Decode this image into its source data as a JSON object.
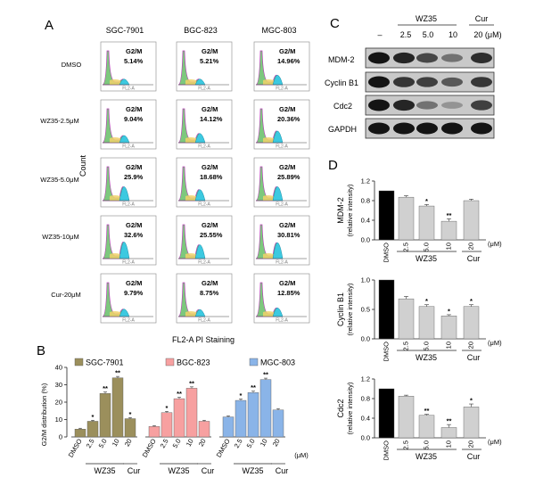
{
  "panels": {
    "A": {
      "letter": "A",
      "cell_lines": [
        "SGC-7901",
        "BGC-823",
        "MGC-803"
      ],
      "treatments": [
        "DMSO",
        "WZ35-2.5μM",
        "WZ35-5.0μM",
        "WZ35-10μM",
        "Cur-20μM"
      ],
      "gate_label": "G2/M",
      "g2m_percent": [
        [
          "5.14%",
          "5.21%",
          "14.96%"
        ],
        [
          "9.04%",
          "14.12%",
          "20.36%"
        ],
        [
          "25.9%",
          "18.68%",
          "25.89%"
        ],
        [
          "32.6%",
          "25.55%",
          "30.81%"
        ],
        [
          "9.79%",
          "8.75%",
          "12.85%"
        ]
      ],
      "ylabel": "Count",
      "xlabel": "FL2-A PI Staining"
    },
    "B": {
      "letter": "B",
      "ylabel": "G2/M distribution (%)",
      "ylim": [
        0,
        40
      ],
      "yticks": [
        "0",
        "10",
        "20",
        "30",
        "40"
      ],
      "group_label": "WZ35",
      "cur_label": "Cur",
      "unit_label": "(μM)",
      "doses": [
        "DMSO",
        "2.5",
        "5.0",
        "10",
        "20"
      ]
    },
    "C": {
      "letter": "C",
      "group_label": "WZ35",
      "cur_label": "Cur",
      "lanes": [
        "–",
        "2.5",
        "5.0",
        "10",
        "20 (μM)"
      ],
      "proteins": [
        "MDM-2",
        "Cyclin B1",
        "Cdc2",
        "GAPDH"
      ]
    },
    "D": {
      "letter": "D",
      "doses": [
        "DMSO",
        "2.5",
        "5.0",
        "10",
        "20"
      ],
      "unit_label": "(μM)",
      "group_label": "WZ35",
      "cur_label": "Cur"
    }
  },
  "chart_data": [
    {
      "type": "bar",
      "title": "",
      "ylabel": "G2/M distribution (%)",
      "ylim": [
        0,
        40
      ],
      "categories": [
        "DMSO",
        "2.5",
        "5.0",
        "10",
        "20"
      ],
      "series": [
        {
          "name": "SGC-7901",
          "color": "#9b8f5c",
          "values": [
            4.5,
            9.0,
            25.0,
            34.0,
            10.5
          ],
          "errors": [
            0.5,
            0.6,
            0.8,
            0.8,
            0.6
          ],
          "sig": [
            "",
            "*",
            "**",
            "**",
            "*"
          ]
        },
        {
          "name": "BGC-823",
          "color": "#f7a0a0",
          "values": [
            6.0,
            14.0,
            22.0,
            28.0,
            9.0
          ],
          "errors": [
            0.5,
            0.7,
            0.8,
            0.8,
            0.6
          ],
          "sig": [
            "",
            "*",
            "**",
            "**",
            ""
          ]
        },
        {
          "name": "MGC-803",
          "color": "#8ab4e8",
          "values": [
            11.5,
            21.0,
            25.5,
            33.0,
            15.5
          ],
          "errors": [
            0.6,
            0.8,
            0.8,
            0.8,
            0.8
          ],
          "sig": [
            "",
            "*",
            "**",
            "**",
            ""
          ]
        }
      ]
    },
    {
      "type": "bar",
      "title": "",
      "ylabel": "MDM-2",
      "ylabel2": "(relative intensity)",
      "ylim": [
        0,
        1.2
      ],
      "yticks": [
        "0.0",
        "0.4",
        "0.8",
        "1.2"
      ],
      "categories": [
        "DMSO",
        "2.5",
        "5.0",
        "10",
        "20"
      ],
      "values": [
        1.0,
        0.87,
        0.69,
        0.38,
        0.8
      ],
      "errors": [
        0,
        0.03,
        0.03,
        0.05,
        0.03
      ],
      "sig": [
        "",
        "",
        "*",
        "**",
        ""
      ]
    },
    {
      "type": "bar",
      "title": "",
      "ylabel": "Cyclin B1",
      "ylabel2": "(relative intensity)",
      "ylim": [
        0,
        1.0
      ],
      "yticks": [
        "0.0",
        "0.5",
        "1.0"
      ],
      "categories": [
        "DMSO",
        "2.5",
        "5.0",
        "10",
        "20"
      ],
      "values": [
        1.0,
        0.68,
        0.55,
        0.39,
        0.55
      ],
      "errors": [
        0,
        0.04,
        0.03,
        0.02,
        0.03
      ],
      "sig": [
        "",
        "",
        "*",
        "*",
        "*"
      ]
    },
    {
      "type": "bar",
      "title": "",
      "ylabel": "Cdc2",
      "ylabel2": "(relative intensity)",
      "ylim": [
        0,
        1.2
      ],
      "yticks": [
        "0.0",
        "0.4",
        "0.8",
        "1.2"
      ],
      "categories": [
        "DMSO",
        "2.5",
        "5.0",
        "10",
        "20"
      ],
      "values": [
        1.0,
        0.85,
        0.46,
        0.21,
        0.63
      ],
      "errors": [
        0,
        0.02,
        0.02,
        0.06,
        0.06
      ],
      "sig": [
        "",
        "",
        "**",
        "**",
        "*"
      ]
    }
  ]
}
